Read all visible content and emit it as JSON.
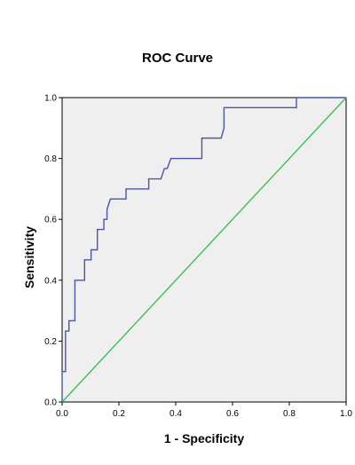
{
  "chart_data": {
    "type": "line",
    "title": "ROC Curve",
    "xlabel": "1 - Specificity",
    "ylabel": "Sensitivity",
    "xlim": [
      0,
      1
    ],
    "ylim": [
      0,
      1
    ],
    "x_ticks": [
      "0.0",
      "0.2",
      "0.4",
      "0.6",
      "0.8",
      "1.0"
    ],
    "y_ticks": [
      "0.0",
      "0.2",
      "0.4",
      "0.6",
      "0.8",
      "1.0"
    ],
    "grid": false,
    "legend": "none",
    "plot_background": "#efefef",
    "series": [
      {
        "color": "#4a55a8",
        "points": [
          [
            0.0,
            0.0
          ],
          [
            0.0,
            0.1
          ],
          [
            0.012,
            0.1
          ],
          [
            0.012,
            0.233
          ],
          [
            0.024,
            0.233
          ],
          [
            0.024,
            0.267
          ],
          [
            0.045,
            0.267
          ],
          [
            0.045,
            0.4
          ],
          [
            0.079,
            0.4
          ],
          [
            0.079,
            0.467
          ],
          [
            0.102,
            0.467
          ],
          [
            0.102,
            0.5
          ],
          [
            0.124,
            0.5
          ],
          [
            0.124,
            0.567
          ],
          [
            0.147,
            0.567
          ],
          [
            0.147,
            0.6
          ],
          [
            0.158,
            0.6
          ],
          [
            0.158,
            0.633
          ],
          [
            0.17,
            0.667
          ],
          [
            0.225,
            0.667
          ],
          [
            0.225,
            0.7
          ],
          [
            0.305,
            0.7
          ],
          [
            0.305,
            0.733
          ],
          [
            0.348,
            0.733
          ],
          [
            0.36,
            0.767
          ],
          [
            0.37,
            0.767
          ],
          [
            0.383,
            0.8
          ],
          [
            0.492,
            0.8
          ],
          [
            0.492,
            0.867
          ],
          [
            0.56,
            0.867
          ],
          [
            0.57,
            0.9
          ],
          [
            0.57,
            0.967
          ],
          [
            0.825,
            0.967
          ],
          [
            0.825,
            1.0
          ],
          [
            1.0,
            1.0
          ]
        ]
      },
      {
        "color": "#3fbf4f",
        "points": [
          [
            0.0,
            0.0
          ],
          [
            1.0,
            1.0
          ]
        ]
      }
    ]
  }
}
